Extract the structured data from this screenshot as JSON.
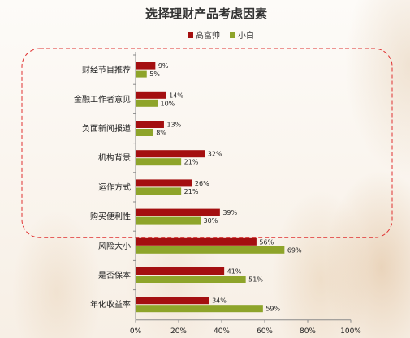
{
  "chart_data": {
    "type": "bar",
    "orientation": "horizontal",
    "title": "选择理财产品考虑因素",
    "categories": [
      "财经节目推荐",
      "金融工作者意见",
      "负面新闻报道",
      "机构背景",
      "运作方式",
      "购买便利性",
      "风险大小",
      "是否保本",
      "年化收益率"
    ],
    "series": [
      {
        "name": "高富帅",
        "color": "#a40f10",
        "values": [
          9,
          14,
          13,
          32,
          26,
          39,
          56,
          41,
          34
        ]
      },
      {
        "name": "小白",
        "color": "#8ea42a",
        "values": [
          5,
          10,
          8,
          21,
          21,
          30,
          69,
          51,
          59
        ]
      }
    ],
    "xlim": [
      0,
      100
    ],
    "xticks": [
      "0%",
      "20%",
      "40%",
      "60%",
      "80%",
      "100%"
    ],
    "value_suffix": "%",
    "legend_position": "top",
    "grid": false,
    "highlight": {
      "style": "dashed-rounded-box",
      "color": "#e03030",
      "first_category": 0,
      "last_category": 5
    }
  }
}
